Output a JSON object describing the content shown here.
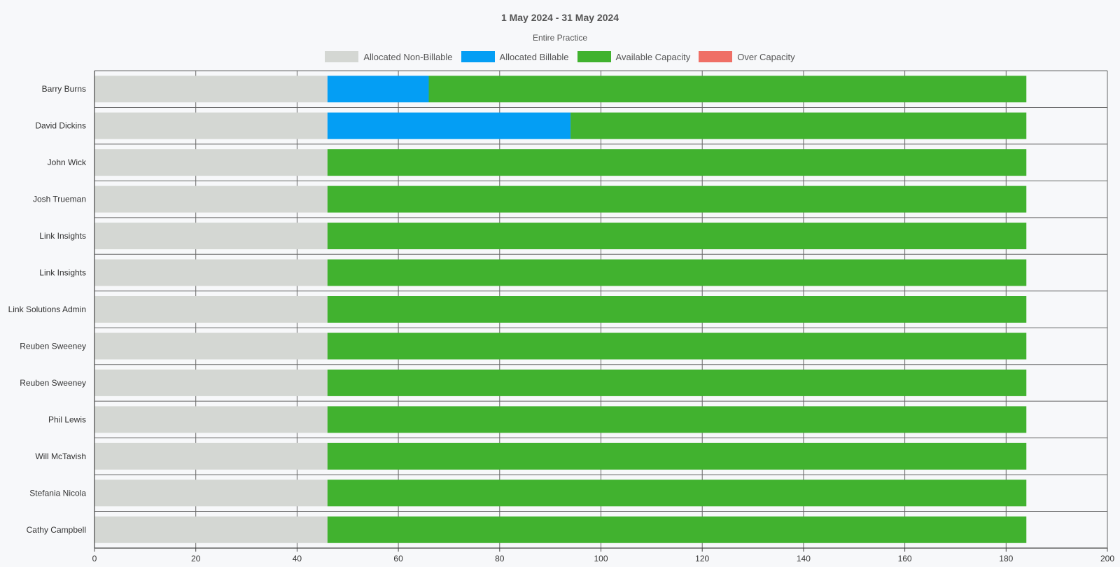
{
  "chart_data": {
    "type": "bar",
    "orientation": "horizontal",
    "stacked": true,
    "title": "1 May 2024 - 31 May 2024",
    "subtitle": "Entire Practice",
    "legend_position": "top-center",
    "grid": true,
    "xlim": [
      0,
      200
    ],
    "x_ticks": [
      0,
      20,
      40,
      60,
      80,
      100,
      120,
      140,
      160,
      180,
      200
    ],
    "categories": [
      "Barry Burns",
      "David Dickins",
      "John Wick",
      "Josh Trueman",
      "Link Insights",
      "Link Insights",
      "Link Solutions Admin",
      "Reuben Sweeney",
      "Reuben Sweeney",
      "Phil Lewis",
      "Will McTavish",
      "Stefania Nicola",
      "Cathy Campbell"
    ],
    "series": [
      {
        "name": "Allocated Non-Billable",
        "color": "#d4d7d3",
        "values": [
          46,
          46,
          46,
          46,
          46,
          46,
          46,
          46,
          46,
          46,
          46,
          46,
          46
        ]
      },
      {
        "name": "Allocated Billable",
        "color": "#049ef4",
        "values": [
          20,
          48,
          0,
          0,
          0,
          0,
          0,
          0,
          0,
          0,
          0,
          0,
          0
        ]
      },
      {
        "name": "Available Capacity",
        "color": "#41b22f",
        "values": [
          118,
          90,
          138,
          138,
          138,
          138,
          138,
          138,
          138,
          138,
          138,
          138,
          138
        ]
      },
      {
        "name": "Over Capacity",
        "color": "#ef6f66",
        "values": [
          0,
          0,
          0,
          0,
          0,
          0,
          0,
          0,
          0,
          0,
          0,
          0,
          0
        ]
      }
    ]
  }
}
